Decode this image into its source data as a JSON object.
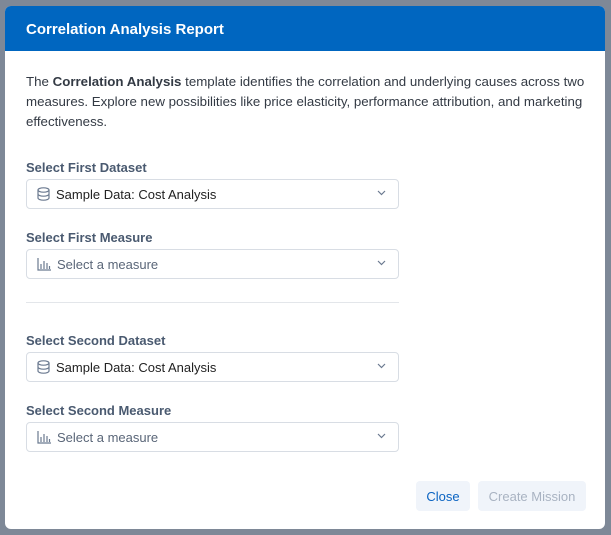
{
  "dialog": {
    "title": "Correlation Analysis Report",
    "description": {
      "prefix": "The ",
      "bold": "Correlation Analysis",
      "suffix": " template identifies the correlation and underlying causes across two measures. Explore new possibilities like price elasticity, performance attribution, and marketing effectiveness."
    },
    "first_dataset": {
      "label": "Select First Dataset",
      "value": "Sample Data: Cost Analysis",
      "icon": "database-icon"
    },
    "first_measure": {
      "label": "Select First Measure",
      "placeholder": "Select a measure",
      "icon": "bar-chart-icon"
    },
    "second_dataset": {
      "label": "Select Second Dataset",
      "value": "Sample Data: Cost Analysis",
      "icon": "database-icon"
    },
    "second_measure": {
      "label": "Select Second Measure",
      "placeholder": "Select a measure",
      "icon": "bar-chart-icon"
    },
    "buttons": {
      "close": "Close",
      "create": "Create Mission"
    },
    "colors": {
      "header": "#0066c0",
      "close_text": "#0a63c2",
      "disabled_text": "#a9b3c2"
    }
  }
}
